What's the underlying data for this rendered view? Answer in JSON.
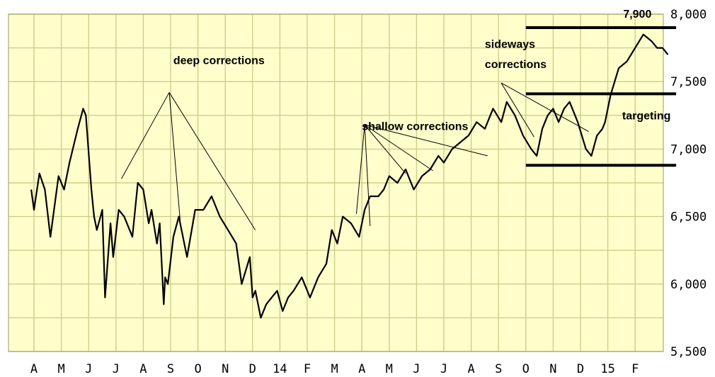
{
  "chart_data": {
    "type": "line",
    "title": "",
    "xlabel": "",
    "ylabel": "",
    "ylim": [
      5500,
      8000
    ],
    "grid": true,
    "colors": {
      "background": "#ffffcc",
      "grid": "#cdcd8a",
      "price": "#000000",
      "axis_area": "#ffffff"
    },
    "y_ticks": [
      {
        "value": 8000,
        "label": "8,000"
      },
      {
        "value": 7500,
        "label": "7,500"
      },
      {
        "value": 7000,
        "label": "7,000"
      },
      {
        "value": 6500,
        "label": "6,500"
      },
      {
        "value": 6000,
        "label": "6,000"
      },
      {
        "value": 5500,
        "label": "5,500"
      }
    ],
    "x_ticks": [
      {
        "index": 0,
        "label": "A"
      },
      {
        "index": 1,
        "label": "M"
      },
      {
        "index": 2,
        "label": "J"
      },
      {
        "index": 3,
        "label": "J"
      },
      {
        "index": 4,
        "label": "A"
      },
      {
        "index": 5,
        "label": "S"
      },
      {
        "index": 6,
        "label": "O"
      },
      {
        "index": 7,
        "label": "N"
      },
      {
        "index": 8,
        "label": "D"
      },
      {
        "index": 9,
        "label": "14"
      },
      {
        "index": 10,
        "label": "F"
      },
      {
        "index": 11,
        "label": "M"
      },
      {
        "index": 12,
        "label": "A"
      },
      {
        "index": 13,
        "label": "M"
      },
      {
        "index": 14,
        "label": "J"
      },
      {
        "index": 15,
        "label": "J"
      },
      {
        "index": 16,
        "label": "A"
      },
      {
        "index": 17,
        "label": "S"
      },
      {
        "index": 18,
        "label": "O"
      },
      {
        "index": 19,
        "label": "N"
      },
      {
        "index": 20,
        "label": "D"
      },
      {
        "index": 21,
        "label": "15"
      },
      {
        "index": 22,
        "label": "F"
      }
    ],
    "series": [
      {
        "x": [
          -0.1,
          0.0,
          0.2,
          0.4,
          0.6,
          0.9,
          1.1,
          1.3,
          1.6,
          1.8,
          1.9,
          2.1,
          2.2,
          2.3,
          2.5,
          2.6,
          2.8,
          2.9,
          3.1,
          3.3,
          3.6,
          3.8,
          4.0,
          4.2,
          4.3,
          4.5,
          4.6,
          4.75,
          4.8,
          4.9,
          5.1,
          5.3,
          5.6,
          5.9,
          6.2,
          6.5,
          6.8,
          7.1,
          7.4,
          7.6,
          7.9,
          8.0,
          8.1,
          8.3,
          8.5,
          8.7,
          8.9,
          9.1,
          9.3,
          9.5,
          9.8,
          10.1,
          10.4,
          10.7,
          10.9,
          11.1,
          11.3,
          11.6,
          11.9,
          12.1,
          12.3,
          12.6,
          12.8,
          13.0,
          13.3,
          13.6,
          13.9,
          14.2,
          14.5,
          14.8,
          15.0,
          15.3,
          15.6,
          15.9,
          16.2,
          16.5,
          16.8,
          17.1,
          17.3,
          17.6,
          17.9,
          18.2,
          18.4,
          18.6,
          18.7,
          18.8,
          19.0,
          19.2,
          19.4,
          19.6,
          19.9,
          20.2,
          20.4,
          20.6,
          20.8,
          20.9,
          21.1,
          21.4,
          21.7,
          22.0,
          22.3,
          22.6,
          22.8,
          23.0,
          23.2
        ],
        "y": [
          6700,
          6550,
          6820,
          6700,
          6350,
          6800,
          6700,
          6900,
          7150,
          7300,
          7250,
          6700,
          6500,
          6400,
          6550,
          5900,
          6450,
          6200,
          6550,
          6500,
          6350,
          6750,
          6700,
          6450,
          6550,
          6300,
          6450,
          5850,
          6050,
          6000,
          6350,
          6500,
          6200,
          6550,
          6550,
          6650,
          6500,
          6400,
          6300,
          6000,
          6200,
          5900,
          5950,
          5750,
          5850,
          5900,
          5950,
          5800,
          5900,
          5950,
          6050,
          5900,
          6050,
          6150,
          6400,
          6300,
          6500,
          6450,
          6350,
          6550,
          6650,
          6650,
          6700,
          6800,
          6750,
          6850,
          6700,
          6800,
          6850,
          6950,
          6900,
          7000,
          7050,
          7100,
          7200,
          7150,
          7300,
          7200,
          7350,
          7250,
          7100,
          7000,
          6950,
          7150,
          7200,
          7250,
          7300,
          7200,
          7300,
          7350,
          7200,
          7000,
          6950,
          7100,
          7150,
          7200,
          7400,
          7600,
          7650,
          7750,
          7850,
          7800,
          7750,
          7750,
          7700
        ]
      }
    ],
    "reference_lines": [
      {
        "value": 7900,
        "x_from": 18.0,
        "x_to": 23.5
      },
      {
        "value": 7410,
        "x_from": 18.0,
        "x_to": 23.5
      },
      {
        "value": 6880,
        "x_from": 18.0,
        "x_to": 23.5
      }
    ],
    "annotations": [
      {
        "id": "deep",
        "text": "deep corrections",
        "anchor_x": 5.1,
        "anchor_y": 7630
      },
      {
        "id": "shallow",
        "text": "shallow corrections",
        "anchor_x": 12.0,
        "anchor_y": 7140
      },
      {
        "id": "sideways1",
        "text": "sideways",
        "anchor_x": 16.5,
        "anchor_y": 7750
      },
      {
        "id": "sideways2",
        "text": "corrections",
        "anchor_x": 16.5,
        "anchor_y": 7600
      },
      {
        "id": "targeting",
        "text": "targeting",
        "anchor_x": 23.3,
        "anchor_y": 7220
      },
      {
        "id": "level",
        "text": "7,900",
        "anchor_x": 22.6,
        "anchor_y": 7975
      }
    ],
    "pointer_lines": [
      {
        "from_x": 4.95,
        "from_y": 7420,
        "to_x": 3.2,
        "to_y": 6780
      },
      {
        "from_x": 4.95,
        "from_y": 7420,
        "to_x": 5.35,
        "to_y": 6470
      },
      {
        "from_x": 4.95,
        "from_y": 7420,
        "to_x": 8.1,
        "to_y": 6400
      },
      {
        "from_x": 12.1,
        "from_y": 7180,
        "to_x": 11.8,
        "to_y": 6520
      },
      {
        "from_x": 12.1,
        "from_y": 7180,
        "to_x": 12.3,
        "to_y": 6430
      },
      {
        "from_x": 12.1,
        "from_y": 7180,
        "to_x": 13.6,
        "to_y": 6820
      },
      {
        "from_x": 12.1,
        "from_y": 7180,
        "to_x": 14.6,
        "to_y": 6840
      },
      {
        "from_x": 12.1,
        "from_y": 7180,
        "to_x": 16.6,
        "to_y": 6950
      },
      {
        "from_x": 17.1,
        "from_y": 7490,
        "to_x": 18.3,
        "to_y": 7090
      },
      {
        "from_x": 17.1,
        "from_y": 7490,
        "to_x": 20.3,
        "to_y": 7130
      }
    ]
  }
}
